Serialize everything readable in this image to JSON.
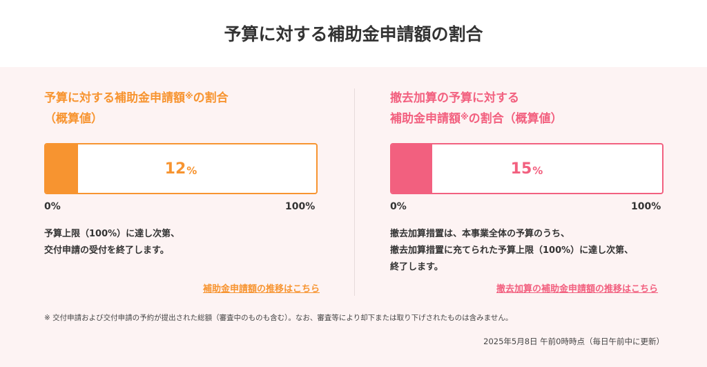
{
  "page_title": "予算に対する補助金申請額の割合",
  "left": {
    "heading_line1_pre": "予算に対する補助金申請額",
    "heading_mark": "※",
    "heading_line1_post": "の割合",
    "heading_line2": "（概算値）",
    "percent_value": "12",
    "percent_unit": "%",
    "fill_fraction": 0.12,
    "scale_min": "0%",
    "scale_max": "100%",
    "desc_line1": "予算上限（100%）に達し次第、",
    "desc_line2": "交付申請の受付を終了します。",
    "link_text": "補助金申請額の推移はこちら",
    "color": "#f79430"
  },
  "right": {
    "heading_line1": "撤去加算の予算に対する",
    "heading_line2_pre": "補助金申請額",
    "heading_mark": "※",
    "heading_line2_post": "の割合（概算値）",
    "percent_value": "15",
    "percent_unit": "%",
    "fill_fraction": 0.15,
    "scale_min": "0%",
    "scale_max": "100%",
    "desc_line1": "撤去加算措置は、本事業全体の予算のうち、",
    "desc_line2": "撤去加算措置に充てられた予算上限（100%）に達し次第、",
    "desc_line3": "終了します。",
    "link_text": "撤去加算の補助金申請額の推移はこちら",
    "color": "#f2607f"
  },
  "footnote": "※ 交付申請および交付申請の予約が提出された総額（審査中のものも含む）。なお、審査等により却下または取り下げされたものは含みません。",
  "timestamp": "2025年5月8日 午前0時時点（毎日午前中に更新）"
}
